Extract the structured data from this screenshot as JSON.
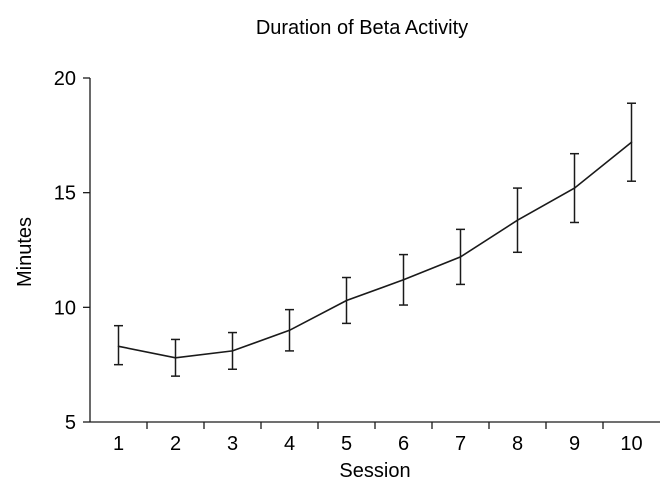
{
  "chart_data": {
    "type": "line",
    "title": "Duration of Beta Activity",
    "xlabel": "Session",
    "ylabel": "Minutes",
    "x": [
      1,
      2,
      3,
      4,
      5,
      6,
      7,
      8,
      9,
      10
    ],
    "x_tick_labels": [
      "1",
      "2",
      "3",
      "4",
      "5",
      "6",
      "7",
      "8",
      "9",
      "10"
    ],
    "y_ticks": [
      5,
      10,
      15,
      20
    ],
    "ylim": [
      5,
      20
    ],
    "grid": false,
    "series": [
      {
        "values": [
          8.3,
          7.8,
          8.1,
          9.0,
          10.3,
          11.2,
          12.2,
          13.8,
          15.2,
          17.2
        ],
        "error_low": [
          7.5,
          7.0,
          7.3,
          8.1,
          9.3,
          10.1,
          11.0,
          12.4,
          13.7,
          15.5
        ],
        "error_high": [
          9.2,
          8.6,
          8.9,
          9.9,
          11.3,
          12.3,
          13.4,
          15.2,
          16.7,
          18.9
        ]
      }
    ],
    "colors": {
      "line": "#1a1a1a"
    }
  }
}
